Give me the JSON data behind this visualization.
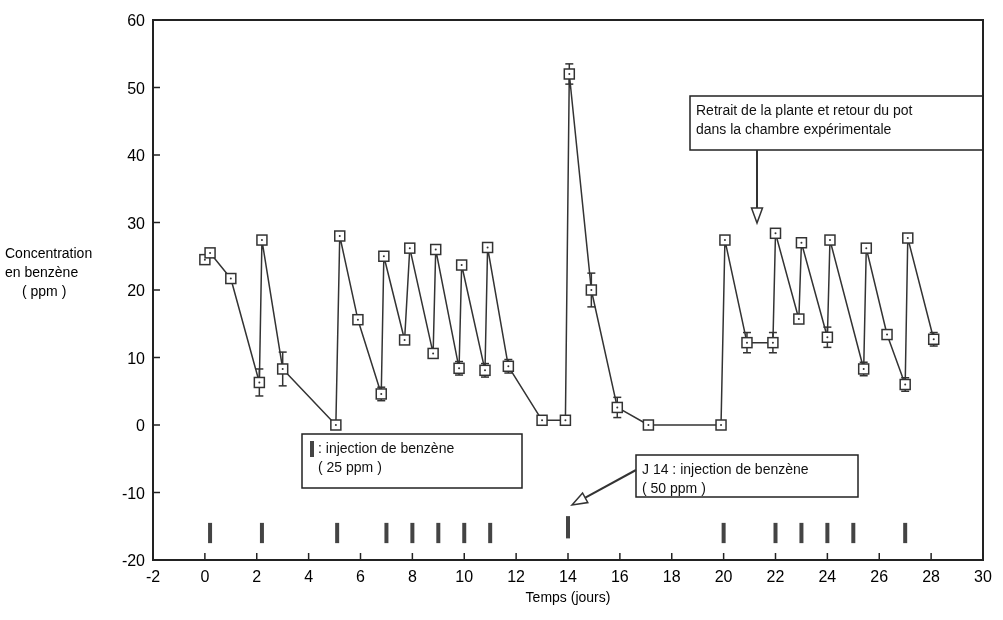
{
  "chart_data": {
    "type": "line",
    "xlabel": "Temps (jours)",
    "ylabel": "Concentration\nen benzène\n( ppm )",
    "xlim": [
      -2,
      30
    ],
    "xticks": [
      -2,
      0,
      2,
      4,
      6,
      8,
      10,
      12,
      14,
      16,
      18,
      20,
      22,
      24,
      26,
      28,
      30
    ],
    "ylim": [
      -20,
      60
    ],
    "yticks": [
      -20,
      -10,
      0,
      10,
      20,
      30,
      40,
      50,
      60
    ],
    "grid": false,
    "series": [
      {
        "marker": "square",
        "color": "#333333",
        "x": [
          0,
          0.2,
          1,
          2.1,
          2.2,
          3,
          5.05,
          5.2,
          5.9,
          6.8,
          6.9,
          7.7,
          7.9,
          8.8,
          8.9,
          9.8,
          9.9,
          10.8,
          10.9,
          11.7,
          13,
          13.9,
          14.05,
          14.9,
          15.9,
          17.1,
          19.9,
          20.05,
          20.9,
          21.9,
          22,
          22.9,
          23,
          24,
          24.1,
          25.4,
          25.5,
          26.3,
          27,
          27.1,
          28.1
        ],
        "values": [
          24.5,
          25.5,
          21.7,
          6.3,
          27.4,
          8.3,
          0,
          28,
          15.6,
          4.6,
          25,
          12.6,
          26.2,
          10.6,
          26,
          8.4,
          23.7,
          8.1,
          26.3,
          8.7,
          0.7,
          0.7,
          52,
          20,
          2.6,
          0,
          0,
          27.4,
          12.2,
          12.2,
          28.4,
          15.7,
          27,
          13,
          27.4,
          8.3,
          26.2,
          13.4,
          6,
          27.7,
          12.7
        ],
        "errors": [
          null,
          null,
          null,
          2,
          null,
          2.5,
          null,
          null,
          null,
          1,
          null,
          null,
          null,
          null,
          null,
          1,
          null,
          1,
          null,
          1,
          null,
          null,
          1.5,
          2.5,
          1.5,
          null,
          null,
          null,
          1.5,
          1.5,
          null,
          null,
          null,
          1.5,
          null,
          1,
          null,
          null,
          1,
          null,
          1
        ]
      },
      {
        "type": "bar",
        "color": "#444444",
        "base": [
          -17.5,
          -17.5,
          -17.5,
          -17.5,
          -17.5,
          -17.5,
          -17.5,
          -17.5,
          -16.8,
          -17.5,
          -17.5,
          -17.5,
          -17.5,
          -17.5,
          -17.5
        ],
        "x": [
          0.2,
          2.2,
          5.1,
          7,
          8,
          9,
          10,
          11,
          14,
          20,
          22,
          23,
          24,
          25,
          27
        ],
        "values": [
          3,
          3,
          3,
          3,
          3,
          3,
          3,
          3,
          3.3,
          3,
          3,
          3,
          3,
          3,
          3
        ]
      }
    ],
    "annotations": [
      ": injection de benzène\n( 25 ppm )",
      "J 14 : injection de benzène\n( 50 ppm )",
      "Retrait de la plante et retour du pot\ndans la chambre expérimentale"
    ]
  }
}
